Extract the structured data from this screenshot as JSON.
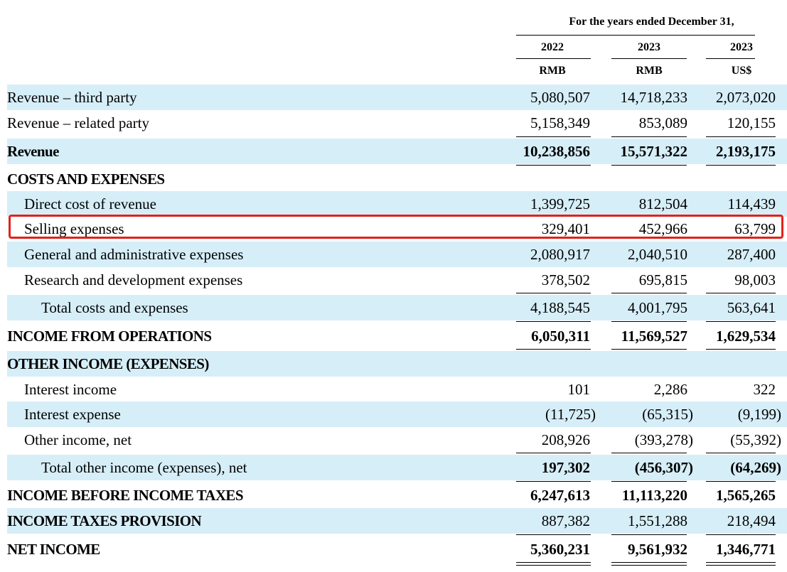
{
  "header": {
    "title": "For the years ended December 31,",
    "years": [
      "2022",
      "2023",
      "2023"
    ],
    "currencies": [
      "RMB",
      "RMB",
      "US$"
    ]
  },
  "rows": [
    {
      "label": "Revenue – third party",
      "values": [
        "5,080,507",
        "14,718,233",
        "2,073,020"
      ]
    },
    {
      "label": "Revenue – related party",
      "values": [
        "5,158,349",
        "853,089",
        "120,155"
      ]
    },
    {
      "label": "Revenue",
      "values": [
        "10,238,856",
        "15,571,322",
        "2,193,175"
      ]
    },
    {
      "label": "COSTS AND EXPENSES"
    },
    {
      "label": "Direct cost of revenue",
      "values": [
        "1,399,725",
        "812,504",
        "114,439"
      ]
    },
    {
      "label": "Selling expenses",
      "values": [
        "329,401",
        "452,966",
        "63,799"
      ]
    },
    {
      "label": "General and administrative expenses",
      "values": [
        "2,080,917",
        "2,040,510",
        "287,400"
      ]
    },
    {
      "label": "Research and development expenses",
      "values": [
        "378,502",
        "695,815",
        "98,003"
      ]
    },
    {
      "label": "Total costs and expenses",
      "values": [
        "4,188,545",
        "4,001,795",
        "563,641"
      ]
    },
    {
      "label": "INCOME FROM OPERATIONS",
      "values": [
        "6,050,311",
        "11,569,527",
        "1,629,534"
      ]
    },
    {
      "label": "OTHER INCOME (EXPENSES)"
    },
    {
      "label": "Interest income",
      "values": [
        "101",
        "2,286",
        "322"
      ]
    },
    {
      "label": "Interest expense",
      "values": [
        "(11,725)",
        "(65,315)",
        "(9,199)"
      ]
    },
    {
      "label": "Other income, net",
      "values": [
        "208,926",
        "(393,278)",
        "(55,392)"
      ]
    },
    {
      "label": "Total other income (expenses), net",
      "values": [
        "197,302",
        "(456,307)",
        "(64,269)"
      ]
    },
    {
      "label": "INCOME BEFORE INCOME TAXES",
      "values": [
        "6,247,613",
        "11,113,220",
        "1,565,265"
      ]
    },
    {
      "label": "INCOME TAXES PROVISION",
      "values": [
        "887,382",
        "1,551,288",
        "218,494"
      ]
    },
    {
      "label": "NET INCOME",
      "values": [
        "5,360,231",
        "9,561,932",
        "1,346,771"
      ]
    }
  ],
  "highlight_color": "#e0221b",
  "shade_color": "#d6eef8"
}
